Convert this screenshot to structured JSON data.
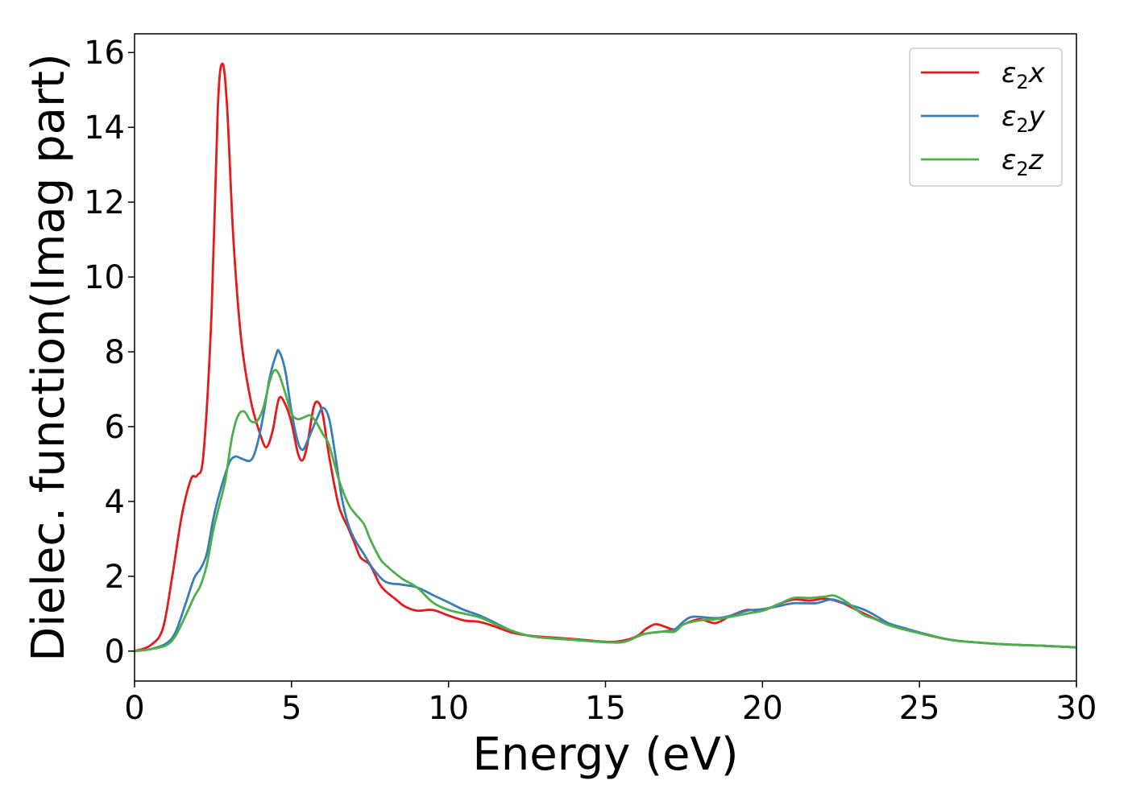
{
  "chart_data": {
    "type": "line",
    "xlabel": "Energy (eV)",
    "ylabel": "Dielec. function(Imag part)",
    "xlim": [
      0,
      30
    ],
    "ylim": [
      -0.8,
      16.5
    ],
    "xticks": [
      0,
      5,
      10,
      15,
      20,
      25,
      30
    ],
    "yticks": [
      0,
      2,
      4,
      6,
      8,
      10,
      12,
      14,
      16
    ],
    "xtick_labels": [
      "0",
      "5",
      "10",
      "15",
      "20",
      "25",
      "30"
    ],
    "ytick_labels": [
      "0",
      "2",
      "4",
      "6",
      "8",
      "10",
      "12",
      "14",
      "16"
    ],
    "grid": false,
    "legend_position": "top-right",
    "series": [
      {
        "name": "ε2x",
        "legend": {
          "base": "ε",
          "sub": "2",
          "axis": "x"
        },
        "color": "#e41a1c",
        "points": [
          [
            0,
            0
          ],
          [
            0.5,
            0.15
          ],
          [
            0.9,
            0.6
          ],
          [
            1.2,
            2
          ],
          [
            1.5,
            3.6
          ],
          [
            1.8,
            4.6
          ],
          [
            2.0,
            4.7
          ],
          [
            2.2,
            5.3
          ],
          [
            2.45,
            9
          ],
          [
            2.65,
            14.5
          ],
          [
            2.8,
            15.7
          ],
          [
            2.95,
            14.5
          ],
          [
            3.15,
            11
          ],
          [
            3.4,
            8.3
          ],
          [
            3.7,
            6.7
          ],
          [
            4.0,
            5.8
          ],
          [
            4.2,
            5.45
          ],
          [
            4.4,
            5.9
          ],
          [
            4.6,
            6.75
          ],
          [
            4.8,
            6.6
          ],
          [
            5.0,
            6.1
          ],
          [
            5.2,
            5.3
          ],
          [
            5.35,
            5.1
          ],
          [
            5.5,
            5.5
          ],
          [
            5.7,
            6.5
          ],
          [
            5.85,
            6.65
          ],
          [
            6.0,
            6.3
          ],
          [
            6.2,
            5.2
          ],
          [
            6.5,
            3.9
          ],
          [
            6.8,
            3.3
          ],
          [
            7.0,
            2.9
          ],
          [
            7.2,
            2.5
          ],
          [
            7.5,
            2.3
          ],
          [
            7.8,
            1.8
          ],
          [
            8.0,
            1.6
          ],
          [
            8.3,
            1.4
          ],
          [
            8.6,
            1.2
          ],
          [
            9.0,
            1.08
          ],
          [
            9.5,
            1.1
          ],
          [
            10.0,
            0.95
          ],
          [
            10.5,
            0.82
          ],
          [
            11.0,
            0.78
          ],
          [
            11.5,
            0.65
          ],
          [
            12.0,
            0.5
          ],
          [
            12.5,
            0.42
          ],
          [
            13.0,
            0.38
          ],
          [
            14.0,
            0.32
          ],
          [
            15.0,
            0.25
          ],
          [
            15.5,
            0.27
          ],
          [
            16.0,
            0.4
          ],
          [
            16.3,
            0.6
          ],
          [
            16.6,
            0.72
          ],
          [
            16.9,
            0.65
          ],
          [
            17.2,
            0.58
          ],
          [
            17.5,
            0.72
          ],
          [
            18.0,
            0.85
          ],
          [
            18.5,
            0.75
          ],
          [
            19.0,
            0.95
          ],
          [
            19.5,
            1.1
          ],
          [
            20.0,
            1.08
          ],
          [
            20.5,
            1.25
          ],
          [
            21.0,
            1.38
          ],
          [
            21.5,
            1.35
          ],
          [
            22.0,
            1.4
          ],
          [
            22.5,
            1.3
          ],
          [
            23.0,
            1.1
          ],
          [
            23.5,
            0.9
          ],
          [
            24.0,
            0.72
          ],
          [
            25.0,
            0.48
          ],
          [
            26.0,
            0.3
          ],
          [
            27.0,
            0.22
          ],
          [
            28.0,
            0.17
          ],
          [
            29.0,
            0.14
          ],
          [
            30.0,
            0.1
          ]
        ]
      },
      {
        "name": "ε2y",
        "legend": {
          "base": "ε",
          "sub": "2",
          "axis": "y"
        },
        "color": "#377eb8",
        "points": [
          [
            0,
            0
          ],
          [
            0.5,
            0.05
          ],
          [
            1.0,
            0.2
          ],
          [
            1.3,
            0.5
          ],
          [
            1.6,
            1.2
          ],
          [
            1.9,
            1.95
          ],
          [
            2.1,
            2.2
          ],
          [
            2.3,
            2.6
          ],
          [
            2.5,
            3.5
          ],
          [
            2.7,
            4.2
          ],
          [
            3.0,
            5.0
          ],
          [
            3.2,
            5.2
          ],
          [
            3.4,
            5.15
          ],
          [
            3.7,
            5.1
          ],
          [
            3.9,
            5.5
          ],
          [
            4.1,
            6.3
          ],
          [
            4.3,
            7.3
          ],
          [
            4.5,
            7.9
          ],
          [
            4.6,
            8.02
          ],
          [
            4.8,
            7.5
          ],
          [
            5.0,
            6.4
          ],
          [
            5.2,
            5.6
          ],
          [
            5.35,
            5.38
          ],
          [
            5.5,
            5.6
          ],
          [
            5.8,
            6.2
          ],
          [
            6.0,
            6.5
          ],
          [
            6.2,
            6.2
          ],
          [
            6.4,
            5.2
          ],
          [
            6.6,
            4.1
          ],
          [
            6.8,
            3.4
          ],
          [
            7.0,
            3.0
          ],
          [
            7.3,
            2.6
          ],
          [
            7.6,
            2.2
          ],
          [
            8.0,
            1.85
          ],
          [
            8.5,
            1.78
          ],
          [
            9.0,
            1.7
          ],
          [
            9.5,
            1.5
          ],
          [
            10.0,
            1.3
          ],
          [
            10.5,
            1.1
          ],
          [
            11.0,
            0.95
          ],
          [
            11.5,
            0.75
          ],
          [
            12.0,
            0.55
          ],
          [
            12.5,
            0.42
          ],
          [
            13.0,
            0.36
          ],
          [
            14.0,
            0.3
          ],
          [
            15.0,
            0.24
          ],
          [
            15.6,
            0.25
          ],
          [
            16.2,
            0.45
          ],
          [
            16.8,
            0.52
          ],
          [
            17.2,
            0.58
          ],
          [
            17.5,
            0.8
          ],
          [
            17.8,
            0.92
          ],
          [
            18.5,
            0.88
          ],
          [
            19.0,
            0.95
          ],
          [
            19.5,
            1.08
          ],
          [
            20.0,
            1.12
          ],
          [
            20.5,
            1.2
          ],
          [
            21.0,
            1.28
          ],
          [
            21.7,
            1.28
          ],
          [
            22.2,
            1.38
          ],
          [
            22.7,
            1.25
          ],
          [
            23.2,
            1.12
          ],
          [
            23.6,
            0.95
          ],
          [
            24.0,
            0.75
          ],
          [
            24.5,
            0.62
          ],
          [
            25.0,
            0.5
          ],
          [
            26.0,
            0.3
          ],
          [
            27.0,
            0.22
          ],
          [
            28.0,
            0.17
          ],
          [
            29.0,
            0.14
          ],
          [
            30.0,
            0.1
          ]
        ]
      },
      {
        "name": "ε2z",
        "legend": {
          "base": "ε",
          "sub": "2",
          "axis": "z"
        },
        "color": "#4daf4a",
        "points": [
          [
            0,
            0
          ],
          [
            0.5,
            0.05
          ],
          [
            1.0,
            0.15
          ],
          [
            1.3,
            0.4
          ],
          [
            1.6,
            0.9
          ],
          [
            1.9,
            1.45
          ],
          [
            2.1,
            1.75
          ],
          [
            2.3,
            2.3
          ],
          [
            2.5,
            3.2
          ],
          [
            2.7,
            3.9
          ],
          [
            2.9,
            4.6
          ],
          [
            3.1,
            5.7
          ],
          [
            3.3,
            6.3
          ],
          [
            3.5,
            6.4
          ],
          [
            3.7,
            6.15
          ],
          [
            3.9,
            6.15
          ],
          [
            4.1,
            6.5
          ],
          [
            4.3,
            7.2
          ],
          [
            4.45,
            7.5
          ],
          [
            4.6,
            7.4
          ],
          [
            4.8,
            6.9
          ],
          [
            5.0,
            6.35
          ],
          [
            5.2,
            6.2
          ],
          [
            5.4,
            6.25
          ],
          [
            5.6,
            6.3
          ],
          [
            5.8,
            6.1
          ],
          [
            6.0,
            5.8
          ],
          [
            6.2,
            5.5
          ],
          [
            6.5,
            4.6
          ],
          [
            6.8,
            3.95
          ],
          [
            7.0,
            3.7
          ],
          [
            7.3,
            3.4
          ],
          [
            7.5,
            3.0
          ],
          [
            7.8,
            2.5
          ],
          [
            8.0,
            2.3
          ],
          [
            8.5,
            1.95
          ],
          [
            9.0,
            1.7
          ],
          [
            9.5,
            1.3
          ],
          [
            10.0,
            1.1
          ],
          [
            10.5,
            1.0
          ],
          [
            11.0,
            0.9
          ],
          [
            11.5,
            0.72
          ],
          [
            12.0,
            0.55
          ],
          [
            12.5,
            0.42
          ],
          [
            13.0,
            0.36
          ],
          [
            14.0,
            0.3
          ],
          [
            15.0,
            0.24
          ],
          [
            15.6,
            0.25
          ],
          [
            16.2,
            0.45
          ],
          [
            16.8,
            0.52
          ],
          [
            17.2,
            0.52
          ],
          [
            17.5,
            0.72
          ],
          [
            18.0,
            0.82
          ],
          [
            18.5,
            0.85
          ],
          [
            19.0,
            0.92
          ],
          [
            19.5,
            1.0
          ],
          [
            20.0,
            1.08
          ],
          [
            20.5,
            1.25
          ],
          [
            21.0,
            1.42
          ],
          [
            21.5,
            1.42
          ],
          [
            22.0,
            1.46
          ],
          [
            22.3,
            1.48
          ],
          [
            22.7,
            1.3
          ],
          [
            23.2,
            0.98
          ],
          [
            23.6,
            0.85
          ],
          [
            24.0,
            0.7
          ],
          [
            24.5,
            0.58
          ],
          [
            25.0,
            0.48
          ],
          [
            26.0,
            0.3
          ],
          [
            27.0,
            0.22
          ],
          [
            28.0,
            0.17
          ],
          [
            29.0,
            0.14
          ],
          [
            30.0,
            0.1
          ]
        ]
      }
    ]
  }
}
